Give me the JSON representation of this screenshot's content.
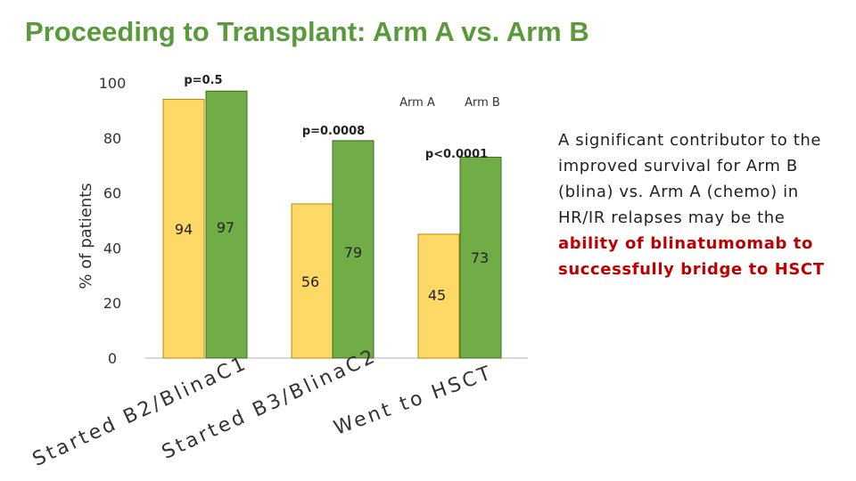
{
  "title": "Proceeding to Transplant: Arm A vs. Arm B",
  "side_note": {
    "text": "A significant contributor to the improved survival for Arm B (blina) vs. Arm A (chemo) in HR/IR relapses may be the ",
    "highlight": "ability of blinatumomab to successfully bridge to HSCT",
    "highlight_color": "#c00000"
  },
  "chart_data": {
    "type": "bar",
    "ylabel": "% of patients",
    "ylim": [
      0,
      100
    ],
    "yticks": [
      0,
      20,
      40,
      60,
      80,
      100
    ],
    "grid": false,
    "legend_position": "top-right",
    "categories": [
      "Started B2/BlinaC1",
      "Started B3/BlinaC2",
      "Went to HSCT"
    ],
    "series": [
      {
        "name": "Arm A",
        "values": [
          94,
          56,
          45
        ],
        "color": "#fed966",
        "border": "#b8860b"
      },
      {
        "name": "Arm B",
        "values": [
          97,
          79,
          73
        ],
        "color": "#70ad47",
        "border": "#3d6b22"
      }
    ],
    "data_labels": [
      "94",
      "97",
      "56",
      "79",
      "45",
      "73"
    ],
    "p_values": [
      "p=0.5",
      "p=0.0008",
      "p<0.0001"
    ]
  }
}
